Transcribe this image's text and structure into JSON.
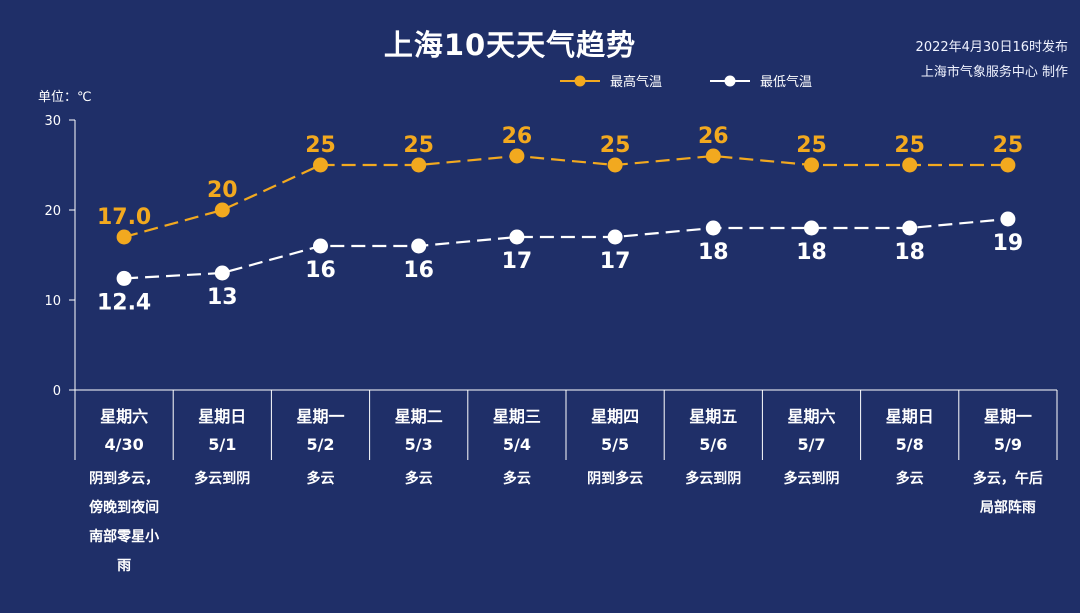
{
  "title": "上海10天天气趋势",
  "publish": {
    "line1": "2022年4月30日16时发布",
    "line2": "上海市气象服务中心 制作"
  },
  "unit_label": "单位：℃",
  "colors": {
    "background": "#1f2f68",
    "high": "#f2a91f",
    "low": "#ffffff",
    "axis": "#ffffff"
  },
  "chart_data": {
    "type": "line",
    "title": "上海10天天气趋势",
    "ylim": [
      0,
      30
    ],
    "yticks": [
      "0",
      "10",
      "20",
      "30"
    ],
    "legend_position": "top-right",
    "categories": [
      {
        "weekday": "星期六",
        "date": "4/30",
        "weather": [
          "阴到多云，",
          "傍晚到夜间",
          "南部零星小",
          "雨"
        ]
      },
      {
        "weekday": "星期日",
        "date": "5/1",
        "weather": [
          "多云到阴"
        ]
      },
      {
        "weekday": "星期一",
        "date": "5/2",
        "weather": [
          "多云"
        ]
      },
      {
        "weekday": "星期二",
        "date": "5/3",
        "weather": [
          "多云"
        ]
      },
      {
        "weekday": "星期三",
        "date": "5/4",
        "weather": [
          "多云"
        ]
      },
      {
        "weekday": "星期四",
        "date": "5/5",
        "weather": [
          "阴到多云"
        ]
      },
      {
        "weekday": "星期五",
        "date": "5/6",
        "weather": [
          "多云到阴"
        ]
      },
      {
        "weekday": "星期六",
        "date": "5/7",
        "weather": [
          "多云到阴"
        ]
      },
      {
        "weekday": "星期日",
        "date": "5/8",
        "weather": [
          "多云"
        ]
      },
      {
        "weekday": "星期一",
        "date": "5/9",
        "weather": [
          "多云，午后",
          "局部阵雨"
        ]
      }
    ],
    "series": [
      {
        "name": "最高气温",
        "values": [
          17.0,
          20,
          25,
          25,
          26,
          25,
          26,
          25,
          25,
          25
        ],
        "labels": [
          "17.0",
          "20",
          "25",
          "25",
          "26",
          "25",
          "26",
          "25",
          "25",
          "25"
        ]
      },
      {
        "name": "最低气温",
        "values": [
          12.4,
          13,
          16,
          16,
          17,
          17,
          18,
          18,
          18,
          19
        ],
        "labels": [
          "12.4",
          "13",
          "16",
          "16",
          "17",
          "17",
          "18",
          "18",
          "18",
          "19"
        ]
      }
    ]
  }
}
